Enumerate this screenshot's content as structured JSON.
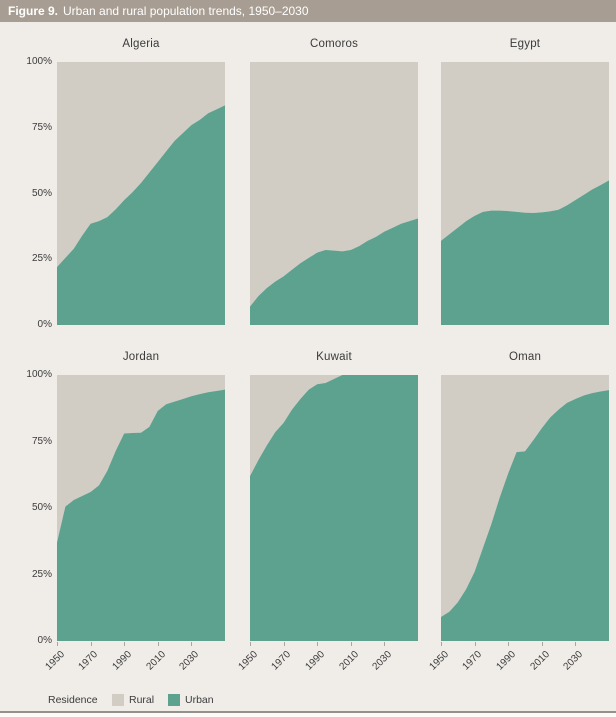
{
  "header": {
    "figure_label": "Figure 9.",
    "title": "Urban and rural population trends, 1950–2030"
  },
  "legend": {
    "title": "Residence",
    "items": [
      {
        "label": "Rural",
        "color": "#d1cdc5"
      },
      {
        "label": "Urban",
        "color": "#5da28e"
      }
    ]
  },
  "colors": {
    "page_background": "#f0ede9",
    "header_bar": "#a79d92",
    "header_text": "#ffffff",
    "axis_text": "#3b3b3b",
    "bottom_rule": "#94908a"
  },
  "chart_data": {
    "type": "area",
    "stacked": true,
    "title": "Urban and rural population trends, 1950–2030",
    "legend_position": "bottom",
    "grid": false,
    "y_tick_labels": [
      "100%",
      "75%",
      "50%",
      "25%",
      "0%"
    ],
    "y_range": [
      0,
      100
    ],
    "x_tick_labels": [
      "1950",
      "1970",
      "1990",
      "2010",
      "2030"
    ],
    "x_tick_years": [
      1950,
      1970,
      1990,
      2010,
      2030
    ],
    "x_range": [
      1950,
      2050
    ],
    "years": [
      1950,
      1955,
      1960,
      1965,
      1970,
      1975,
      1980,
      1985,
      1990,
      1995,
      2000,
      2005,
      2010,
      2015,
      2020,
      2025,
      2030,
      2035,
      2040,
      2045,
      2050
    ],
    "series_names": [
      "Rural",
      "Urban"
    ],
    "panels": [
      {
        "title": "Algeria",
        "urban_pct": [
          22,
          25.5,
          29,
          34,
          38.5,
          39.5,
          41,
          44,
          47.5,
          50.5,
          54,
          58,
          62,
          66,
          70,
          73,
          76,
          78,
          80.5,
          82,
          83.5
        ]
      },
      {
        "title": "Comoros",
        "urban_pct": [
          7,
          11,
          14,
          16.5,
          18.5,
          21,
          23.5,
          25.5,
          27.5,
          28.5,
          28.3,
          28,
          28.5,
          30,
          32,
          33.5,
          35.5,
          37,
          38.5,
          39.5,
          40.5
        ]
      },
      {
        "title": "Egypt",
        "urban_pct": [
          32,
          34.5,
          37,
          39.5,
          41.5,
          43,
          43.5,
          43.5,
          43.3,
          43,
          42.7,
          42.6,
          42.8,
          43.2,
          43.8,
          45.5,
          47.5,
          49.5,
          51.5,
          53.2,
          55
        ]
      },
      {
        "title": "Jordan",
        "urban_pct": [
          37,
          50.5,
          53,
          54.5,
          56,
          58.5,
          64,
          71.5,
          78,
          78.2,
          78.3,
          80.5,
          86.5,
          89,
          90,
          91,
          92,
          92.8,
          93.5,
          94,
          94.5
        ]
      },
      {
        "title": "Kuwait",
        "urban_pct": [
          62,
          68,
          73.5,
          78.5,
          82,
          87,
          91,
          94.5,
          96.5,
          97,
          98.5,
          100,
          100,
          100,
          100,
          100,
          100,
          100,
          100,
          100,
          100
        ]
      },
      {
        "title": "Oman",
        "urban_pct": [
          9,
          11,
          14.5,
          19.5,
          26,
          35,
          44,
          54,
          63,
          71,
          71.3,
          75.5,
          80,
          84,
          87,
          89.5,
          91,
          92.3,
          93.2,
          93.8,
          94.3
        ]
      }
    ]
  }
}
